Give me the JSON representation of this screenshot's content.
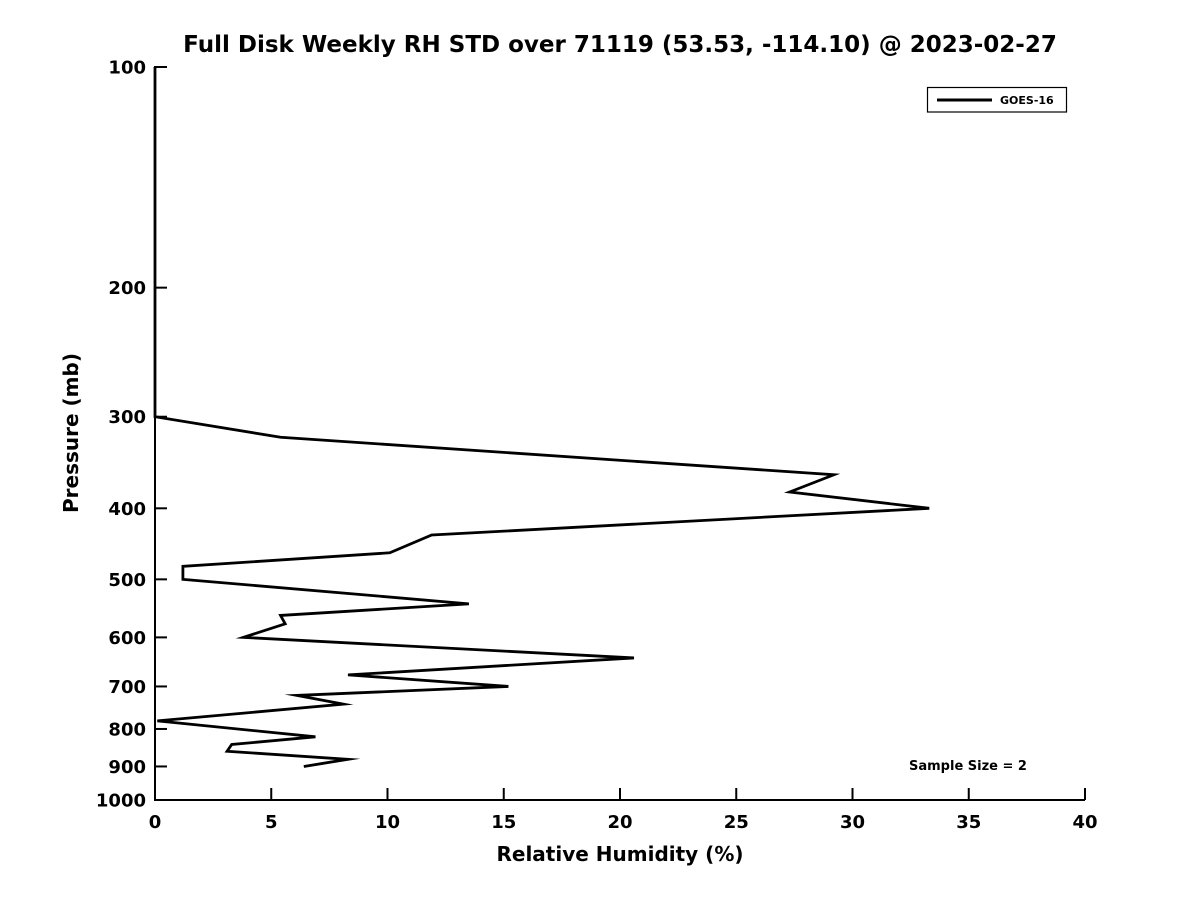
{
  "chart_data": {
    "type": "line",
    "title": "Full Disk Weekly RH STD over 71119 (53.53, -114.10) @ 2023-02-27",
    "xlabel": "Relative Humidity (%)",
    "ylabel": "Pressure (mb)",
    "xlim": [
      0,
      40
    ],
    "ylim": [
      1000,
      100
    ],
    "y_scale": "log",
    "y_axis_inverted": true,
    "grid": false,
    "x_ticks": [
      0,
      5,
      10,
      15,
      20,
      25,
      30,
      35,
      40
    ],
    "y_ticks": [
      100,
      200,
      300,
      400,
      500,
      600,
      700,
      800,
      900,
      1000
    ],
    "legend_position": "upper right",
    "line_color": "#000000",
    "annotations": [
      {
        "text": "Sample Size = 2",
        "x": 35,
        "y": 895
      }
    ],
    "series": [
      {
        "name": "GOES-16",
        "color": "#000000",
        "points_format": "[relative_humidity_pct, pressure_mb]",
        "points": [
          [
            0.0,
            100
          ],
          [
            0.0,
            300
          ],
          [
            5.4,
            320
          ],
          [
            29.2,
            360
          ],
          [
            27.3,
            380
          ],
          [
            33.3,
            400
          ],
          [
            11.9,
            435
          ],
          [
            10.1,
            460
          ],
          [
            1.2,
            480
          ],
          [
            1.2,
            500
          ],
          [
            13.5,
            540
          ],
          [
            5.4,
            560
          ],
          [
            5.6,
            575
          ],
          [
            3.8,
            600
          ],
          [
            20.6,
            640
          ],
          [
            8.3,
            675
          ],
          [
            15.2,
            700
          ],
          [
            6.1,
            720
          ],
          [
            8.1,
            740
          ],
          [
            0.1,
            780
          ],
          [
            6.9,
            820
          ],
          [
            3.3,
            840
          ],
          [
            3.1,
            858
          ],
          [
            8.3,
            880
          ],
          [
            6.4,
            900
          ]
        ]
      }
    ]
  }
}
